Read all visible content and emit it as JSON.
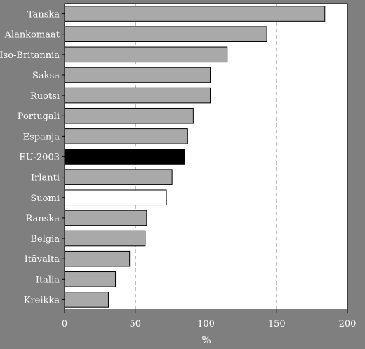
{
  "chart_data": {
    "type": "bar",
    "orientation": "horizontal",
    "title": "",
    "xlabel": "%",
    "ylabel": "",
    "xlim": [
      0,
      200
    ],
    "xticks": [
      0,
      50,
      100,
      150,
      200
    ],
    "grid": "dashed vertical lines at 50, 100, 150",
    "legend": "none",
    "categories": [
      "Tanska",
      "Alankomaat",
      "Iso-Britannia",
      "Saksa",
      "Ruotsi",
      "Portugali",
      "Espanja",
      "EU-2003",
      "Irlanti",
      "Suomi",
      "Ranska",
      "Belgia",
      "Itävalta",
      "Italia",
      "Kreikka"
    ],
    "values": [
      184,
      143,
      115,
      103,
      103,
      91,
      87,
      85,
      76,
      72,
      58,
      57,
      46,
      36,
      31
    ],
    "highlight": {
      "EU-2003": "black",
      "Suomi": "white"
    },
    "colors": {
      "bar": "#a9a9a9",
      "highlight_eu": "#000000",
      "highlight_suomi": "#ffffff",
      "background": "#7f7f7f",
      "plot": "#ffffff"
    }
  }
}
